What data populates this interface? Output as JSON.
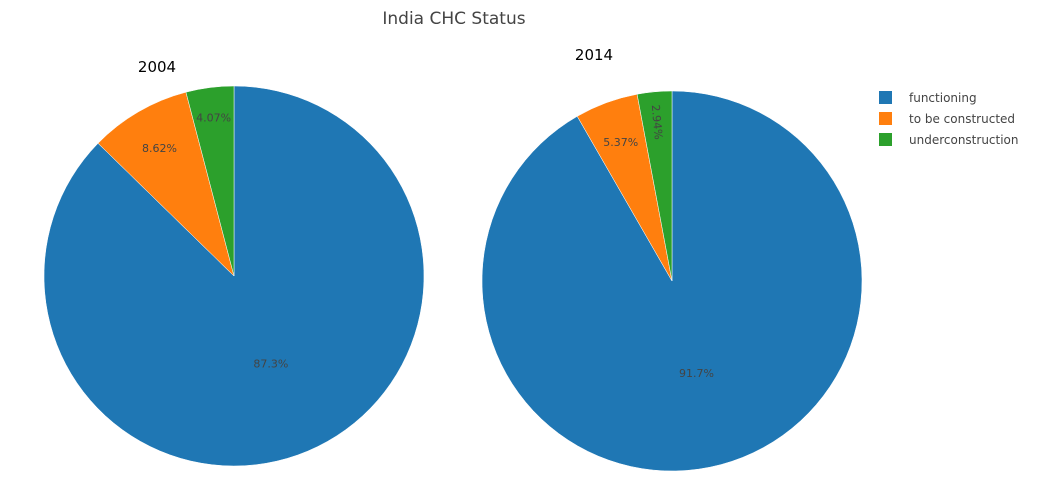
{
  "chart_data": {
    "type": "pie",
    "title": "India CHC Status",
    "legend": {
      "placement": "top-right",
      "items": [
        {
          "label": "functioning",
          "color": "#1f77b4"
        },
        {
          "label": "to be constructed",
          "color": "#ff7f0e"
        },
        {
          "label": "underconstruction",
          "color": "#2ca02c"
        }
      ]
    },
    "pies": [
      {
        "title": "2004",
        "slices": [
          {
            "label": "functioning",
            "value": 87.3,
            "text": "87.3%",
            "color": "#1f77b4"
          },
          {
            "label": "to be constructed",
            "value": 8.62,
            "text": "8.62%",
            "color": "#ff7f0e"
          },
          {
            "label": "underconstruction",
            "value": 4.07,
            "text": "4.07%",
            "color": "#2ca02c"
          }
        ]
      },
      {
        "title": "2014",
        "slices": [
          {
            "label": "functioning",
            "value": 91.7,
            "text": "91.7%",
            "color": "#1f77b4"
          },
          {
            "label": "to be constructed",
            "value": 5.37,
            "text": "5.37%",
            "color": "#ff7f0e"
          },
          {
            "label": "underconstruction",
            "value": 2.94,
            "text": "2.94%",
            "color": "#2ca02c"
          }
        ]
      }
    ]
  }
}
